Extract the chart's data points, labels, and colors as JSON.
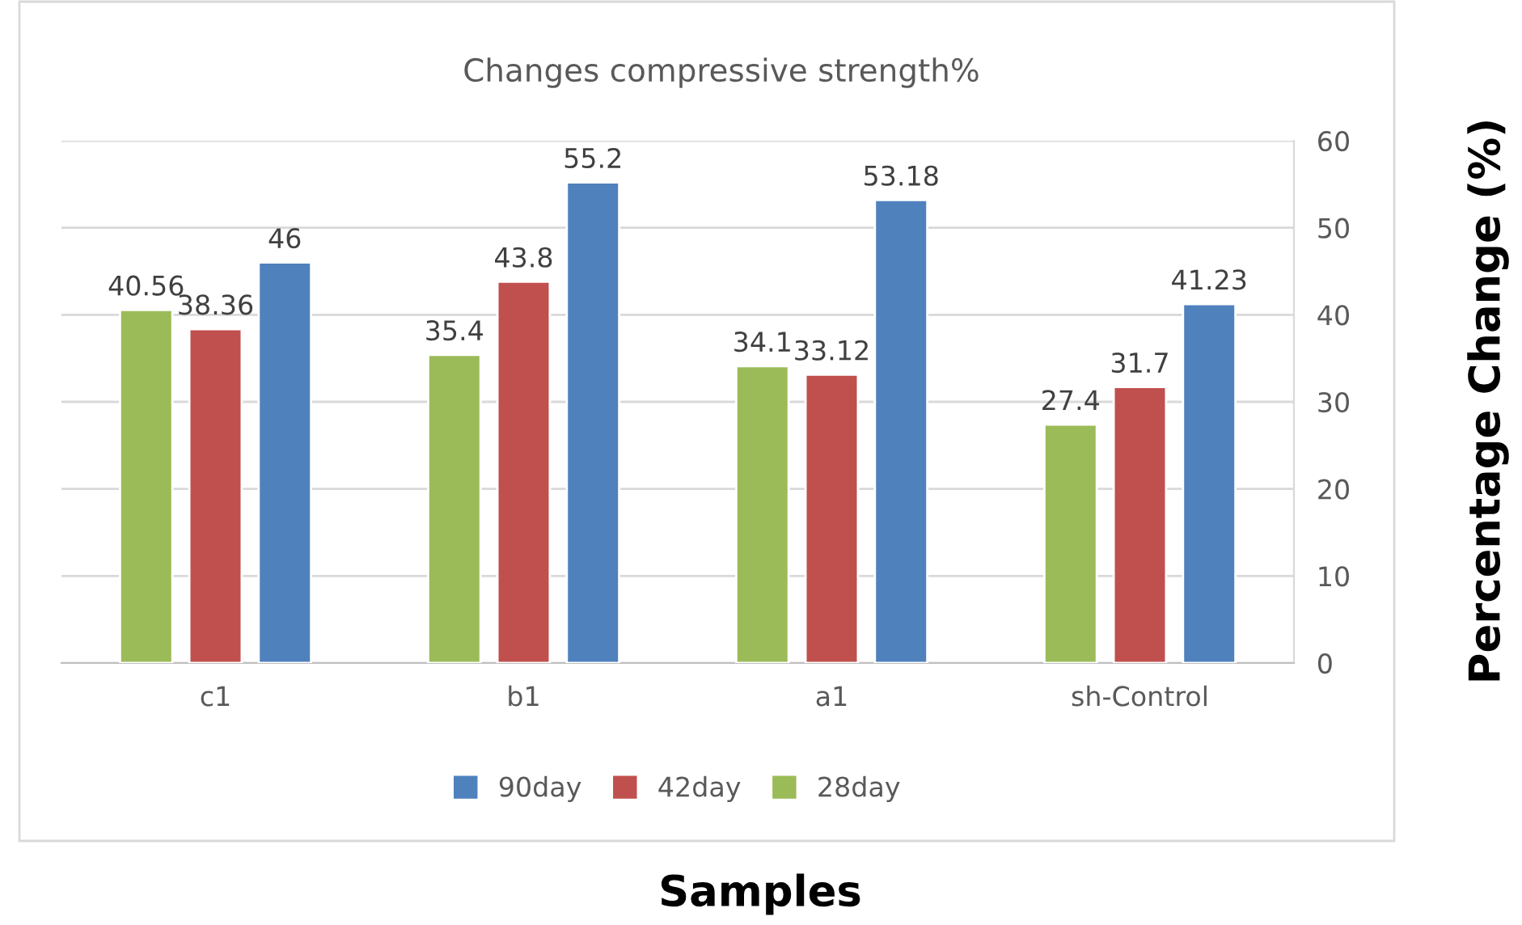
{
  "chart_data": {
    "type": "bar",
    "title": "Changes compressive strength%",
    "xlabel": "Samples",
    "ylabel": "Percentage Change (%)",
    "categories": [
      "c1",
      "b1",
      "a1",
      "sh-Control"
    ],
    "series": [
      {
        "name": "28day",
        "color": "#9bbb59",
        "values": [
          40.56,
          35.4,
          34.1,
          27.4
        ]
      },
      {
        "name": "42day",
        "color": "#c0504d",
        "values": [
          38.36,
          43.8,
          33.12,
          31.7
        ]
      },
      {
        "name": "90day",
        "color": "#4f81bd",
        "values": [
          46,
          55.2,
          53.18,
          41.23
        ]
      }
    ],
    "ylim": [
      0,
      60
    ],
    "yticks": [
      0,
      10,
      20,
      30,
      40,
      50,
      60
    ],
    "grid": "y",
    "legend": "bottom",
    "data_labels": true
  }
}
